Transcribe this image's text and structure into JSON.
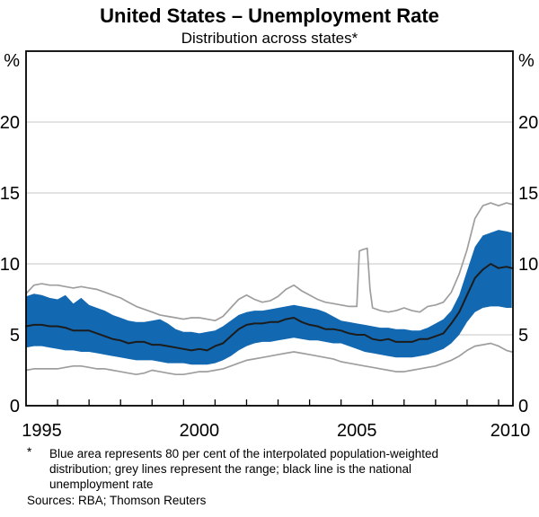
{
  "chart_data": {
    "type": "area",
    "title": "United States – Unemployment Rate",
    "subtitle": "Distribution across states*",
    "unit_label": "%",
    "xlabel": "",
    "ylabel": "%",
    "ylim": [
      0,
      25
    ],
    "xlim": [
      1995,
      2010.46
    ],
    "yticks": [
      0,
      5,
      10,
      15,
      20
    ],
    "gridlines": [
      5,
      10,
      15,
      20
    ],
    "grid": "on",
    "legend": "none (described in footnote)",
    "xticks": [
      1996,
      1997,
      1998,
      1999,
      2000,
      2001,
      2002,
      2003,
      2004,
      2005,
      2006,
      2007,
      2008,
      2009,
      2010
    ],
    "xtick_labels": [
      "1995",
      "2000",
      "2005",
      "2010"
    ],
    "colors": {
      "band": "#1268b1",
      "range_line": "#9e9e9e",
      "national_line": "#1c1c1c",
      "gridline": "#c6c6c6",
      "frame": "#000000"
    },
    "x": [
      1995,
      1995.25,
      1995.5,
      1995.75,
      1996,
      1996.25,
      1996.5,
      1996.75,
      1997,
      1997.25,
      1997.5,
      1997.75,
      1998,
      1998.25,
      1998.5,
      1998.75,
      1999,
      1999.25,
      1999.5,
      1999.75,
      2000,
      2000.25,
      2000.5,
      2000.75,
      2001,
      2001.25,
      2001.5,
      2001.75,
      2002,
      2002.25,
      2002.5,
      2002.75,
      2003,
      2003.25,
      2003.5,
      2003.75,
      2004,
      2004.25,
      2004.5,
      2004.75,
      2005,
      2005.25,
      2005.5,
      2005.75,
      2006,
      2006.25,
      2006.5,
      2006.75,
      2007,
      2007.25,
      2007.5,
      2007.75,
      2008,
      2008.25,
      2008.5,
      2008.75,
      2009,
      2009.25,
      2009.5,
      2009.75,
      2010,
      2010.25,
      2010.42
    ],
    "series": [
      {
        "name": "range-max",
        "label": "State range maximum (grey line)",
        "x": [
          1995,
          1995.25,
          1995.5,
          1995.75,
          1996,
          1996.25,
          1996.5,
          1996.75,
          1997,
          1997.25,
          1997.5,
          1997.75,
          1998,
          1998.25,
          1998.5,
          1998.75,
          1999,
          1999.25,
          1999.5,
          1999.75,
          2000,
          2000.25,
          2000.5,
          2000.75,
          2001,
          2001.25,
          2001.5,
          2001.75,
          2002,
          2002.25,
          2002.5,
          2002.75,
          2003,
          2003.25,
          2003.5,
          2003.75,
          2004,
          2004.25,
          2004.5,
          2004.75,
          2005,
          2005.25,
          2005.5,
          2005.58,
          2005.67,
          2005.75,
          2005.83,
          2005.92,
          2006,
          2006.25,
          2006.5,
          2006.75,
          2007,
          2007.25,
          2007.5,
          2007.75,
          2008,
          2008.25,
          2008.5,
          2008.75,
          2009,
          2009.25,
          2009.5,
          2009.75,
          2010,
          2010.25,
          2010.42
        ],
        "values": [
          7.9,
          8.5,
          8.6,
          8.5,
          8.5,
          8.4,
          8.3,
          8.4,
          8.3,
          8.2,
          8.0,
          7.8,
          7.6,
          7.3,
          7.0,
          6.8,
          6.6,
          6.4,
          6.3,
          6.2,
          6.1,
          6.2,
          6.2,
          6.1,
          6.0,
          6.3,
          6.9,
          7.5,
          7.8,
          7.5,
          7.3,
          7.4,
          7.7,
          8.2,
          8.5,
          8.1,
          7.8,
          7.5,
          7.3,
          7.2,
          7.1,
          7.0,
          7.0,
          10.9,
          11.0,
          11.05,
          11.1,
          8.2,
          6.9,
          6.7,
          6.6,
          6.7,
          6.9,
          6.7,
          6.6,
          7.0,
          7.1,
          7.3,
          8.0,
          9.3,
          11.0,
          13.2,
          14.1,
          14.3,
          14.1,
          14.3,
          14.2
        ]
      },
      {
        "name": "p90",
        "label": "80% band upper edge (blue area top)",
        "values": [
          7.7,
          7.9,
          7.8,
          7.6,
          7.5,
          7.8,
          7.2,
          7.6,
          7.1,
          6.9,
          6.7,
          6.4,
          6.2,
          6.0,
          5.9,
          5.9,
          6.0,
          6.1,
          5.8,
          5.4,
          5.2,
          5.2,
          5.1,
          5.2,
          5.3,
          5.6,
          6.0,
          6.4,
          6.6,
          6.7,
          6.7,
          6.8,
          6.9,
          7.0,
          7.1,
          7.0,
          6.9,
          6.8,
          6.6,
          6.3,
          6.0,
          5.9,
          5.8,
          5.7,
          5.6,
          5.5,
          5.5,
          5.4,
          5.4,
          5.3,
          5.3,
          5.5,
          5.8,
          6.1,
          6.7,
          7.8,
          9.5,
          11.2,
          12.0,
          12.2,
          12.4,
          12.3,
          12.2
        ]
      },
      {
        "name": "p10",
        "label": "80% band lower edge (blue area bottom)",
        "values": [
          4.1,
          4.2,
          4.2,
          4.1,
          4.0,
          3.9,
          3.9,
          3.8,
          3.8,
          3.7,
          3.6,
          3.5,
          3.4,
          3.3,
          3.2,
          3.2,
          3.2,
          3.1,
          3.0,
          3.0,
          3.0,
          2.9,
          2.9,
          2.9,
          3.0,
          3.2,
          3.5,
          3.9,
          4.2,
          4.4,
          4.5,
          4.5,
          4.6,
          4.7,
          4.8,
          4.7,
          4.6,
          4.6,
          4.5,
          4.4,
          4.4,
          4.2,
          4.0,
          3.8,
          3.7,
          3.6,
          3.5,
          3.4,
          3.4,
          3.4,
          3.5,
          3.6,
          3.8,
          4.0,
          4.4,
          5.0,
          5.9,
          6.6,
          6.9,
          7.0,
          7.0,
          6.9,
          6.9
        ]
      },
      {
        "name": "range-min",
        "label": "State range minimum (grey line)",
        "values": [
          2.5,
          2.6,
          2.6,
          2.6,
          2.6,
          2.7,
          2.8,
          2.8,
          2.7,
          2.6,
          2.6,
          2.5,
          2.4,
          2.3,
          2.2,
          2.3,
          2.5,
          2.4,
          2.3,
          2.2,
          2.2,
          2.3,
          2.4,
          2.4,
          2.5,
          2.6,
          2.8,
          3.0,
          3.2,
          3.3,
          3.4,
          3.5,
          3.6,
          3.7,
          3.8,
          3.7,
          3.6,
          3.5,
          3.4,
          3.3,
          3.1,
          3.0,
          2.9,
          2.8,
          2.7,
          2.6,
          2.5,
          2.4,
          2.4,
          2.5,
          2.6,
          2.7,
          2.8,
          3.0,
          3.2,
          3.5,
          3.9,
          4.2,
          4.3,
          4.4,
          4.2,
          3.9,
          3.8
        ]
      },
      {
        "name": "national",
        "label": "National unemployment rate (black line)",
        "values": [
          5.6,
          5.7,
          5.7,
          5.6,
          5.6,
          5.5,
          5.3,
          5.3,
          5.3,
          5.1,
          4.9,
          4.7,
          4.6,
          4.4,
          4.5,
          4.5,
          4.3,
          4.3,
          4.2,
          4.1,
          4.0,
          3.9,
          4.0,
          3.9,
          4.2,
          4.4,
          4.9,
          5.4,
          5.7,
          5.8,
          5.8,
          5.9,
          5.9,
          6.1,
          6.2,
          5.9,
          5.7,
          5.6,
          5.4,
          5.4,
          5.3,
          5.1,
          5.0,
          5.0,
          4.7,
          4.6,
          4.7,
          4.5,
          4.5,
          4.5,
          4.7,
          4.7,
          4.9,
          5.1,
          5.8,
          6.6,
          7.8,
          9.0,
          9.6,
          10.0,
          9.7,
          9.8,
          9.7
        ]
      }
    ],
    "footnote_marker": "*",
    "footnote_lines": [
      "Blue area represents 80 per cent of the interpolated population-weighted",
      "distribution; grey lines represent the range; black line is the national",
      "unemployment rate"
    ],
    "sources": "Sources: RBA; Thomson Reuters"
  }
}
